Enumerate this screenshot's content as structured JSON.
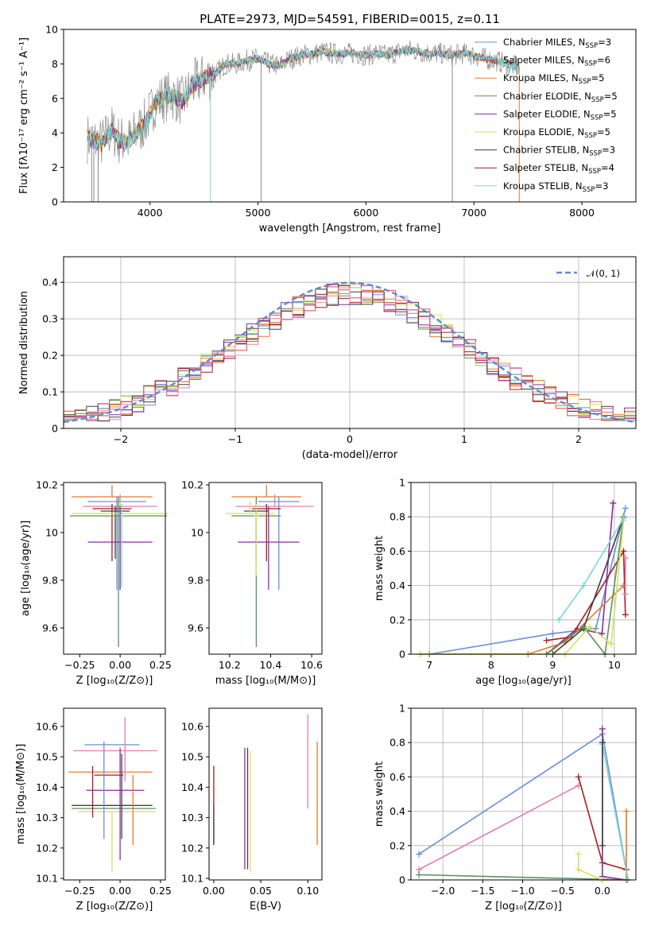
{
  "colors": {
    "chabrier_miles": "#6a8fdc",
    "salpeter_miles": "#e24d3a",
    "kroupa_miles": "#e87a2a",
    "chabrier_elodie": "#5e8f5e",
    "salpeter_elodie": "#8a2c9e",
    "kroupa_elodie": "#d0e25a",
    "chabrier_stelib": "#404040",
    "salpeter_stelib": "#a81c1c",
    "kroupa_stelib": "#7ad6d6",
    "pink": "#e080b0",
    "gaussian": "#5b8bd6"
  },
  "chart_data": [
    {
      "id": "spectrum",
      "type": "line",
      "title": "PLATE=2973, MJD=54591, FIBERID=0015, z=0.11",
      "xlabel": "wavelength [Angstrom, rest frame]",
      "ylabel": "Flux [fλ10⁻¹⁷ erg cm⁻² s⁻¹ A⁻¹]",
      "xlim": [
        3200,
        8500
      ],
      "ylim": [
        0,
        10
      ],
      "xticks": [
        4000,
        5000,
        6000,
        7000,
        8000
      ],
      "yticks": [
        0,
        2,
        4,
        6,
        8,
        10
      ],
      "grid": false,
      "legend_position": "top-right",
      "legend": [
        {
          "label": "Chabrier MILES, N",
          "sub": "SSP",
          "suffix": "=3",
          "color_key": "chabrier_miles"
        },
        {
          "label": "Salpeter MILES, N",
          "sub": "SSP",
          "suffix": "=6",
          "color_key": "salpeter_miles"
        },
        {
          "label": "Kroupa MILES, N",
          "sub": "SSP",
          "suffix": "=5",
          "color_key": "kroupa_miles"
        },
        {
          "label": "Chabrier ELODIE, N",
          "sub": "SSP",
          "suffix": "=5",
          "color_key": "chabrier_elodie"
        },
        {
          "label": "Salpeter ELODIE, N",
          "sub": "SSP",
          "suffix": "=5",
          "color_key": "salpeter_elodie"
        },
        {
          "label": "Kroupa ELODIE, N",
          "sub": "SSP",
          "suffix": "=5",
          "color_key": "kroupa_elodie"
        },
        {
          "label": "Chabrier STELIB, N",
          "sub": "SSP",
          "suffix": "=3",
          "color_key": "chabrier_stelib"
        },
        {
          "label": "Salpeter STELIB, N",
          "sub": "SSP",
          "suffix": "=4",
          "color_key": "salpeter_stelib"
        },
        {
          "label": "Kroupa STELIB, N",
          "sub": "SSP",
          "suffix": "=3",
          "color_key": "kroupa_stelib"
        }
      ],
      "continuum": [
        [
          3420,
          3.7
        ],
        [
          3550,
          3.4
        ],
        [
          3650,
          4.2
        ],
        [
          3700,
          3.6
        ],
        [
          3800,
          3.5
        ],
        [
          3900,
          4.2
        ],
        [
          3960,
          4.6
        ],
        [
          4050,
          5.8
        ],
        [
          4200,
          6.2
        ],
        [
          4300,
          5.8
        ],
        [
          4400,
          6.8
        ],
        [
          4500,
          7.2
        ],
        [
          4600,
          7.4
        ],
        [
          4700,
          8.0
        ],
        [
          4800,
          8.0
        ],
        [
          4900,
          8.2
        ],
        [
          5000,
          8.3
        ],
        [
          5100,
          8.0
        ],
        [
          5200,
          7.9
        ],
        [
          5300,
          8.3
        ],
        [
          5400,
          8.5
        ],
        [
          5500,
          8.6
        ],
        [
          5600,
          8.7
        ],
        [
          5700,
          8.6
        ],
        [
          5800,
          8.6
        ],
        [
          5900,
          8.6
        ],
        [
          6000,
          8.5
        ],
        [
          6100,
          8.6
        ],
        [
          6200,
          8.5
        ],
        [
          6300,
          8.7
        ],
        [
          6400,
          8.8
        ],
        [
          6500,
          8.7
        ],
        [
          6600,
          8.6
        ],
        [
          6700,
          8.6
        ],
        [
          6800,
          8.5
        ],
        [
          6900,
          8.6
        ],
        [
          7000,
          8.5
        ],
        [
          7100,
          8.3
        ],
        [
          7200,
          8.2
        ],
        [
          7300,
          8.0
        ],
        [
          7400,
          7.8
        ]
      ],
      "dropouts": [
        [
          3460,
          0
        ],
        [
          3480,
          0
        ],
        [
          3520,
          0
        ],
        [
          4560,
          0
        ],
        [
          5030,
          0
        ],
        [
          6800,
          0
        ],
        [
          7420,
          0
        ]
      ]
    },
    {
      "id": "residuals",
      "type": "histogram",
      "xlabel": "(data-model)/error",
      "ylabel": "Normed distribution",
      "xlim": [
        -2.5,
        2.5
      ],
      "ylim": [
        0,
        0.47
      ],
      "xticks": [
        -2,
        -1,
        0,
        1,
        2
      ],
      "yticks": [
        0,
        0.1,
        0.2,
        0.3,
        0.4
      ],
      "grid": true,
      "legend_position": "top-right",
      "gaussian_label": "𝒩(0, 1)",
      "bin_width": 0.1
    },
    {
      "id": "age-vs-Z",
      "type": "errorbar",
      "xlabel": "Z [log₁₀(Z/Z⊙)]",
      "ylabel": "age  [log₁₀(age/yr)]",
      "xlim": [
        -0.35,
        0.28
      ],
      "ylim": [
        9.49,
        10.21
      ],
      "xticks": [
        -0.25,
        0,
        0.25
      ],
      "xticklabels": [
        "−0.25",
        "0.00",
        "0.25"
      ],
      "yticks": [
        9.6,
        9.8,
        10.0,
        10.2
      ],
      "points": [
        {
          "x": -0.05,
          "xerr": 0.25,
          "y": 10.15,
          "yerr_lo": 0.0,
          "yerr_hi": 0.05,
          "color_key": "kroupa_miles"
        },
        {
          "x": 0.0,
          "xerr": 0.23,
          "y": 10.11,
          "yerr_lo": 0.0,
          "yerr_hi": 0.05,
          "color_key": "pink"
        },
        {
          "x": -0.02,
          "xerr": 0.18,
          "y": 10.13,
          "yerr_lo": 0.37,
          "yerr_hi": 0.02,
          "color_key": "chabrier_miles"
        },
        {
          "x": -0.05,
          "xerr": 0.12,
          "y": 10.1,
          "yerr_lo": 0.22,
          "yerr_hi": 0.02,
          "color_key": "salpeter_stelib"
        },
        {
          "x": -0.03,
          "xerr": 0.09,
          "y": 10.09,
          "yerr_lo": 0.2,
          "yerr_hi": 0.02,
          "color_key": "chabrier_stelib"
        },
        {
          "x": -0.01,
          "xerr": 0.3,
          "y": 10.07,
          "yerr_lo": 0.55,
          "yerr_hi": 0.08,
          "color_key": "chabrier_elodie"
        },
        {
          "x": 0.0,
          "xerr": 0.3,
          "y": 10.08,
          "yerr_lo": 0.0,
          "yerr_hi": 0.05,
          "color_key": "kroupa_elodie"
        },
        {
          "x": 0.0,
          "xerr": 0.2,
          "y": 9.96,
          "yerr_lo": 0.2,
          "yerr_hi": 0.15,
          "color_key": "salpeter_elodie"
        },
        {
          "x": 0.01,
          "xerr": 0.01,
          "y": 10.07,
          "yerr_lo": 0.3,
          "yerr_hi": 0.05,
          "color_key": "kroupa_stelib"
        }
      ]
    },
    {
      "id": "age-vs-mass",
      "type": "errorbar",
      "xlabel": "mass [log₁₀(M/M⊙)]",
      "ylabel": "",
      "xlim": [
        10.1,
        10.65
      ],
      "ylim": [
        9.49,
        10.21
      ],
      "xticks": [
        10.2,
        10.4,
        10.6
      ],
      "yticks": [
        9.6,
        9.8,
        10.0,
        10.2
      ],
      "points": [
        {
          "x": 10.38,
          "xerr": 0.17,
          "y": 10.15,
          "yerr_lo": 0.0,
          "yerr_hi": 0.05,
          "color_key": "kroupa_miles"
        },
        {
          "x": 10.42,
          "xerr": 0.19,
          "y": 10.11,
          "yerr_lo": 0.0,
          "yerr_hi": 0.05,
          "color_key": "pink"
        },
        {
          "x": 10.44,
          "xerr": 0.1,
          "y": 10.13,
          "yerr_lo": 0.37,
          "yerr_hi": 0.02,
          "color_key": "chabrier_miles"
        },
        {
          "x": 10.38,
          "xerr": 0.07,
          "y": 10.1,
          "yerr_lo": 0.22,
          "yerr_hi": 0.02,
          "color_key": "salpeter_stelib"
        },
        {
          "x": 10.33,
          "xerr": 0.06,
          "y": 10.09,
          "yerr_lo": 0.2,
          "yerr_hi": 0.02,
          "color_key": "chabrier_stelib"
        },
        {
          "x": 10.33,
          "xerr": 0.12,
          "y": 10.07,
          "yerr_lo": 0.55,
          "yerr_hi": 0.08,
          "color_key": "chabrier_elodie"
        },
        {
          "x": 10.3,
          "xerr": 0.12,
          "y": 10.08,
          "yerr_lo": 0.0,
          "yerr_hi": 0.05,
          "color_key": "kroupa_elodie"
        },
        {
          "x": 10.39,
          "xerr": 0.15,
          "y": 9.96,
          "yerr_lo": 0.2,
          "yerr_hi": 0.15,
          "color_key": "salpeter_elodie"
        },
        {
          "x": 10.33,
          "xerr": 0.01,
          "y": 10.07,
          "yerr_lo": 0.25,
          "yerr_hi": 0.05,
          "color_key": "kroupa_elodie"
        }
      ]
    },
    {
      "id": "weight-vs-age",
      "type": "line",
      "xlabel": "age  [log₁₀(age/yr)]",
      "ylabel": "mass weight",
      "xlim": [
        6.7,
        10.35
      ],
      "ylim": [
        0,
        1.0
      ],
      "xticks": [
        7,
        8,
        9,
        10
      ],
      "yticks": [
        0,
        0.2,
        0.4,
        0.6,
        0.8,
        1.0
      ],
      "grid": true,
      "series": [
        {
          "color_key": "chabrier_miles",
          "x": [
            7.0,
            9.0,
            9.7,
            10.18
          ],
          "y": [
            0.0,
            0.12,
            0.15,
            0.85
          ]
        },
        {
          "color_key": "salpeter_elodie",
          "x": [
            8.9,
            9.4,
            9.8,
            9.98
          ],
          "y": [
            0.0,
            0.15,
            0.12,
            0.88
          ]
        },
        {
          "color_key": "salpeter_stelib",
          "x": [
            8.9,
            9.3,
            10.15,
            10.18
          ],
          "y": [
            0.08,
            0.1,
            0.6,
            0.23
          ]
        },
        {
          "color_key": "kroupa_miles",
          "x": [
            6.85,
            8.6,
            9.2,
            10.15
          ],
          "y": [
            0.0,
            0.0,
            0.07,
            0.4
          ]
        },
        {
          "color_key": "chabrier_stelib",
          "x": [
            9.0,
            9.5,
            10.15
          ],
          "y": [
            0.0,
            0.15,
            0.8
          ]
        },
        {
          "color_key": "chabrier_elodie",
          "x": [
            8.9,
            9.5,
            9.85,
            10.15
          ],
          "y": [
            0.0,
            0.16,
            0.0,
            0.8
          ]
        },
        {
          "color_key": "kroupa_elodie",
          "x": [
            6.85,
            9.2,
            9.6,
            9.95,
            10.15
          ],
          "y": [
            0.0,
            0.0,
            0.16,
            0.06,
            0.78
          ]
        },
        {
          "color_key": "kroupa_stelib",
          "x": [
            9.1,
            9.5,
            10.15
          ],
          "y": [
            0.2,
            0.4,
            0.79
          ]
        },
        {
          "color_key": "pink",
          "x": [
            10.18,
            10.18
          ],
          "y": [
            0.35,
            0.56
          ]
        }
      ]
    },
    {
      "id": "mass-vs-Z",
      "type": "errorbar",
      "xlabel": "Z [log₁₀(Z/Z⊙)]",
      "ylabel": "mass [log₁₀(M/M⊙)]",
      "xlim": [
        -0.35,
        0.28
      ],
      "ylim": [
        10.095,
        10.66
      ],
      "xticks": [
        -0.25,
        0,
        0.25
      ],
      "xticklabels": [
        "−0.25",
        "0.00",
        "0.25"
      ],
      "yticks": [
        10.1,
        10.2,
        10.3,
        10.4,
        10.5,
        10.6
      ],
      "points": [
        {
          "x": -0.05,
          "xerr": 0.17,
          "y": 10.54,
          "yerr_lo": 0.0,
          "yerr_hi": 0.0,
          "color_key": "chabrier_miles"
        },
        {
          "x": -0.03,
          "xerr": 0.26,
          "y": 10.52,
          "yerr_lo": 0.0,
          "yerr_hi": 0.0,
          "color_key": "pink"
        },
        {
          "x": -0.06,
          "xerr": 0.26,
          "y": 10.45,
          "yerr_lo": 0.0,
          "yerr_hi": 0.0,
          "color_key": "kroupa_miles"
        },
        {
          "x": -0.07,
          "xerr": 0.09,
          "y": 10.44,
          "yerr_lo": 0.0,
          "yerr_hi": 0.0,
          "color_key": "salpeter_stelib"
        },
        {
          "x": -0.03,
          "xerr": 0.18,
          "y": 10.39,
          "yerr_lo": 0.0,
          "yerr_hi": 0.0,
          "color_key": "salpeter_elodie"
        },
        {
          "x": -0.05,
          "xerr": 0.25,
          "y": 10.34,
          "yerr_lo": 0.0,
          "yerr_hi": 0.0,
          "color_key": "chabrier_stelib"
        },
        {
          "x": -0.04,
          "xerr": 0.26,
          "y": 10.33,
          "yerr_lo": 0.0,
          "yerr_hi": 0.0,
          "color_key": "chabrier_elodie"
        },
        {
          "x": -0.02,
          "xerr": 0.24,
          "y": 10.32,
          "yerr_lo": 0.0,
          "yerr_hi": 0.0,
          "color_key": "kroupa_elodie"
        },
        {
          "x": -0.1,
          "xerr": 0.0,
          "y": 10.38,
          "yerr_lo": 0.15,
          "yerr_hi": 0.17,
          "color_key": "chabrier_miles"
        },
        {
          "x": -0.17,
          "xerr": 0.0,
          "y": 10.4,
          "yerr_lo": 0.1,
          "yerr_hi": 0.07,
          "color_key": "salpeter_stelib"
        },
        {
          "x": -0.05,
          "xerr": 0.0,
          "y": 10.32,
          "yerr_lo": 0.2,
          "yerr_hi": 0.0,
          "color_key": "kroupa_elodie"
        },
        {
          "x": 0.0,
          "xerr": 0.0,
          "y": 10.34,
          "yerr_lo": 0.18,
          "yerr_hi": 0.19,
          "color_key": "salpeter_elodie"
        },
        {
          "x": 0.03,
          "xerr": 0.0,
          "y": 10.42,
          "yerr_lo": 0.0,
          "yerr_hi": 0.21,
          "color_key": "pink"
        },
        {
          "x": 0.08,
          "xerr": 0.0,
          "y": 10.33,
          "yerr_lo": 0.12,
          "yerr_hi": 0.11,
          "color_key": "kroupa_miles"
        },
        {
          "x": 0.01,
          "xerr": 0.0,
          "y": 10.34,
          "yerr_lo": 0.11,
          "yerr_hi": 0.17,
          "color_key": "chabrier_stelib"
        }
      ]
    },
    {
      "id": "mass-vs-EBV",
      "type": "errorbar",
      "xlabel": "E(B-V)",
      "ylabel": "",
      "xlim": [
        -0.005,
        0.115
      ],
      "ylim": [
        10.095,
        10.66
      ],
      "xticks": [
        0.0,
        0.05,
        0.1
      ],
      "xticklabels": [
        "0.00",
        "0.05",
        "0.10"
      ],
      "yticks": [
        10.1,
        10.2,
        10.3,
        10.4,
        10.5,
        10.6
      ],
      "points": [
        {
          "x": 0.0,
          "xerr": 0.0,
          "y": 10.34,
          "yerr_lo": 0.13,
          "yerr_hi": 0.13,
          "color_key": "salpeter_stelib"
        },
        {
          "x": 0.0,
          "xerr": 0.0,
          "y": 10.28,
          "yerr_lo": 0.07,
          "yerr_hi": 0.06,
          "color_key": "chabrier_stelib"
        },
        {
          "x": 0.033,
          "xerr": 0.0,
          "y": 10.33,
          "yerr_lo": 0.2,
          "yerr_hi": 0.2,
          "color_key": "salpeter_elodie"
        },
        {
          "x": 0.036,
          "xerr": 0.0,
          "y": 10.33,
          "yerr_lo": 0.2,
          "yerr_hi": 0.2,
          "color_key": "chabrier_stelib"
        },
        {
          "x": 0.039,
          "xerr": 0.0,
          "y": 10.33,
          "yerr_lo": 0.21,
          "yerr_hi": 0.19,
          "color_key": "kroupa_elodie"
        },
        {
          "x": 0.1,
          "xerr": 0.0,
          "y": 10.48,
          "yerr_lo": 0.15,
          "yerr_hi": 0.16,
          "color_key": "pink"
        },
        {
          "x": 0.11,
          "xerr": 0.0,
          "y": 10.38,
          "yerr_lo": 0.17,
          "yerr_hi": 0.17,
          "color_key": "kroupa_miles"
        }
      ]
    },
    {
      "id": "weight-vs-Z",
      "type": "line",
      "xlabel": "Z [log₁₀(Z/Z⊙)]",
      "ylabel": "mass weight",
      "xlim": [
        -2.4,
        0.42
      ],
      "ylim": [
        0,
        1.0
      ],
      "xticks": [
        -2.0,
        -1.5,
        -1.0,
        -0.5,
        0.0
      ],
      "xticklabels": [
        "−2.0",
        "−1.5",
        "−1.0",
        "−0.5",
        "0.0"
      ],
      "yticks": [
        0,
        0.2,
        0.4,
        0.6,
        0.8,
        1.0
      ],
      "grid": true,
      "series": [
        {
          "color_key": "chabrier_miles",
          "x": [
            -2.3,
            0.0,
            0.32
          ],
          "y": [
            0.15,
            0.85,
            0.0
          ]
        },
        {
          "color_key": "pink",
          "x": [
            -2.3,
            -0.3
          ],
          "y": [
            0.06,
            0.55
          ]
        },
        {
          "color_key": "chabrier_elodie",
          "x": [
            -2.3,
            0.32
          ],
          "y": [
            0.03,
            0.0
          ]
        },
        {
          "color_key": "salpeter_stelib",
          "x": [
            -0.3,
            0.0,
            0.3
          ],
          "y": [
            0.6,
            0.1,
            0.06
          ]
        },
        {
          "color_key": "salpeter_elodie",
          "x": [
            0.0,
            0.0,
            0.3
          ],
          "y": [
            0.88,
            0.02,
            0.0
          ]
        },
        {
          "color_key": "kroupa_miles",
          "x": [
            0.0,
            0.3,
            0.3
          ],
          "y": [
            0.0,
            0.0,
            0.4
          ]
        },
        {
          "color_key": "kroupa_elodie",
          "x": [
            -0.3,
            -0.3,
            0.0
          ],
          "y": [
            0.15,
            0.06,
            0.0
          ]
        },
        {
          "color_key": "kroupa_stelib",
          "x": [
            0.0,
            0.32
          ],
          "y": [
            0.79,
            0.0
          ]
        },
        {
          "color_key": "chabrier_stelib",
          "x": [
            0.0,
            0.0
          ],
          "y": [
            0.8,
            0.2
          ]
        }
      ]
    }
  ]
}
